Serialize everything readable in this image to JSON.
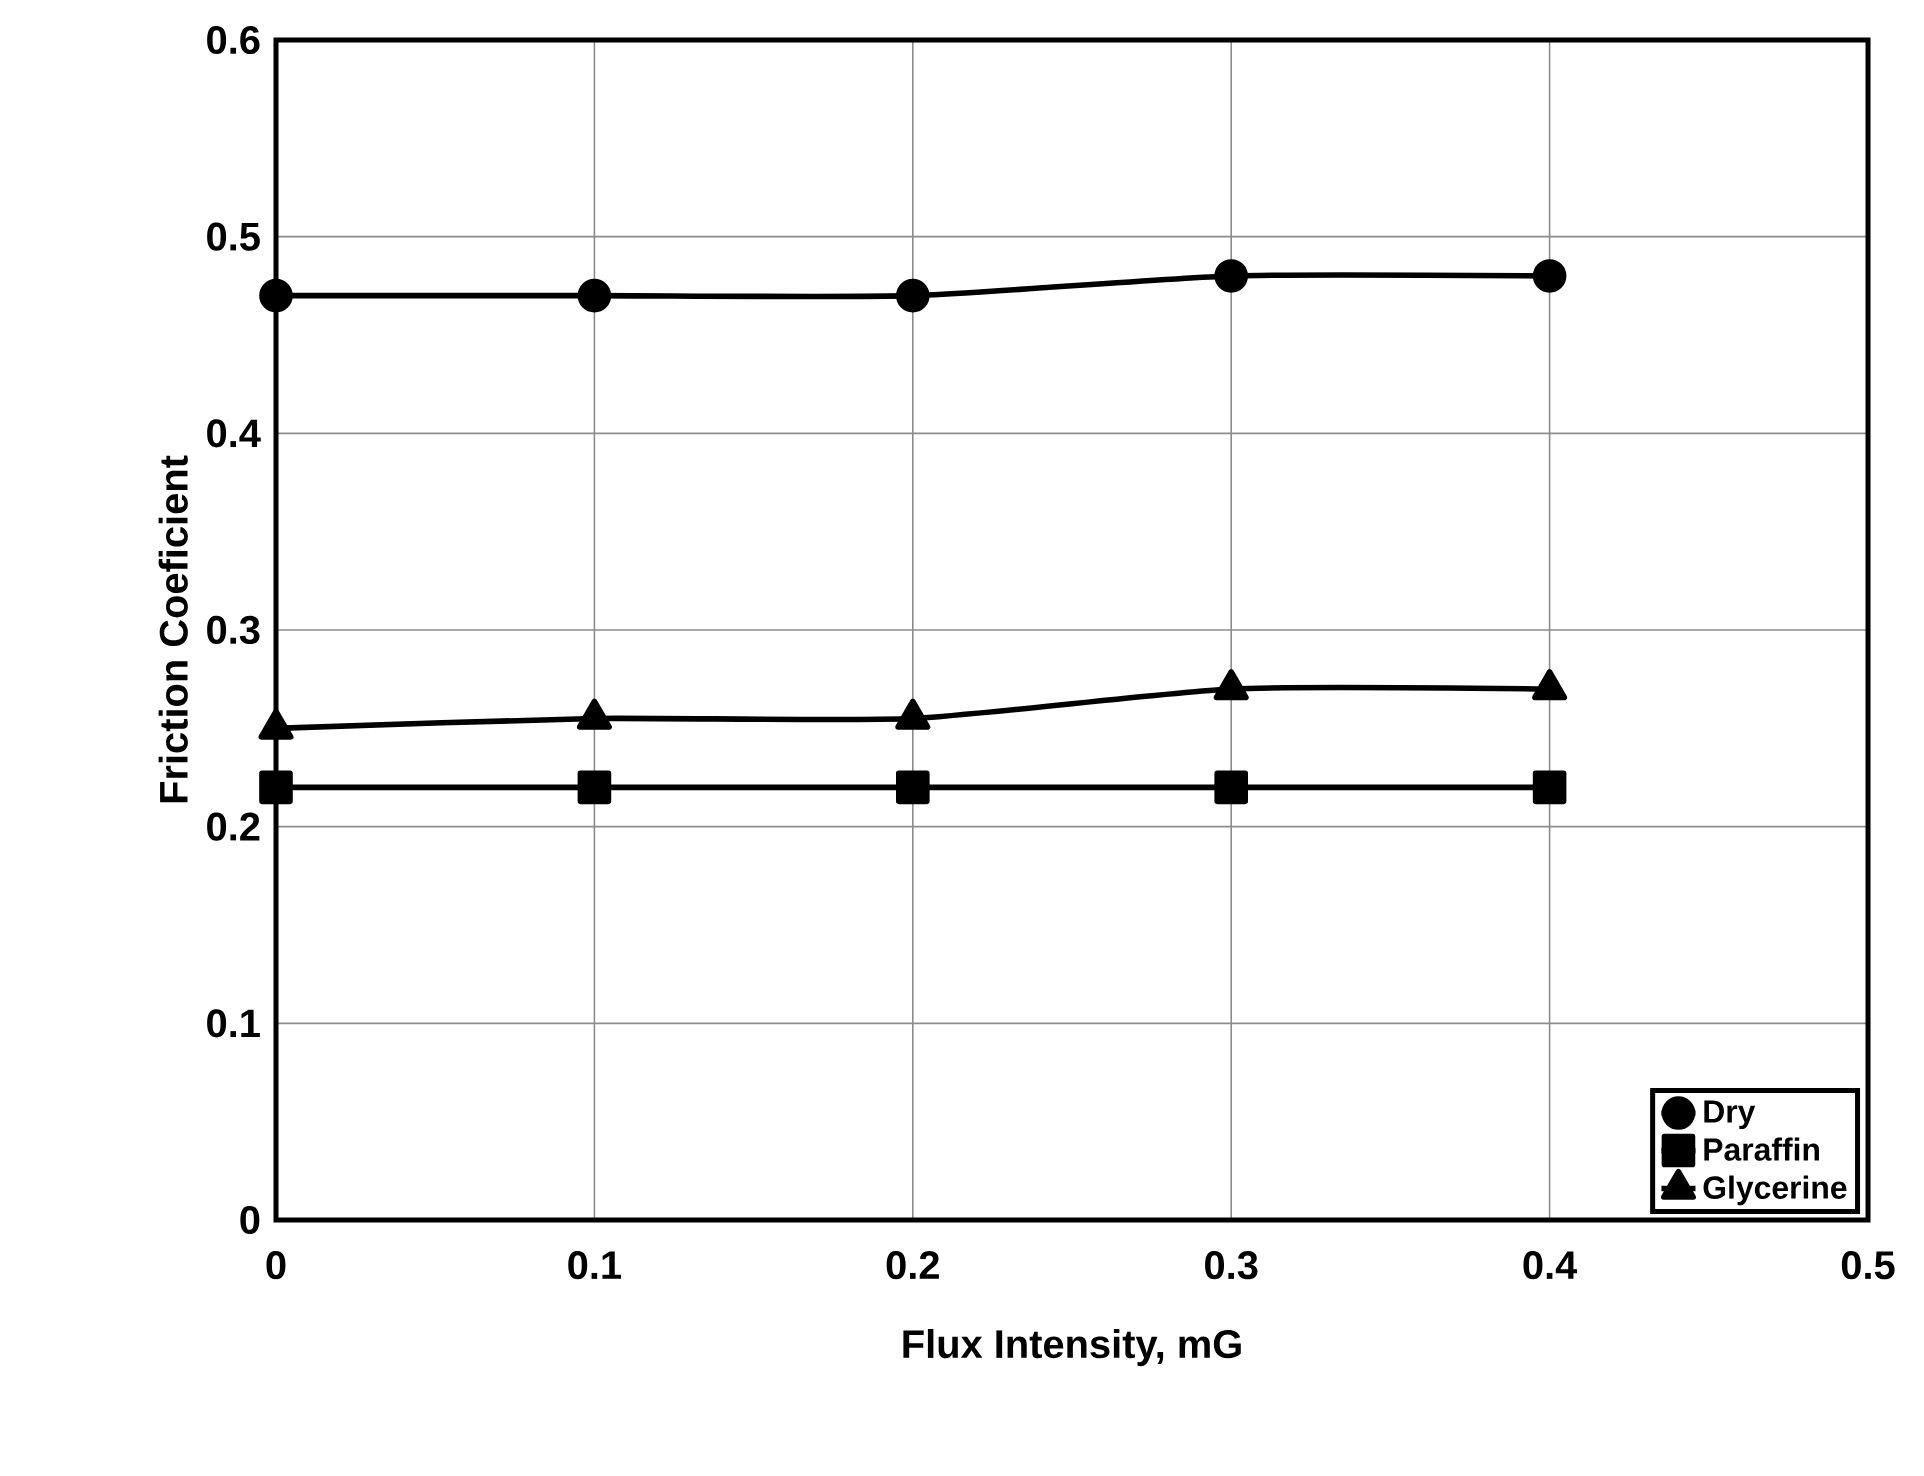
{
  "chart_data": {
    "type": "line",
    "xlabel": "Flux Intensity, mG",
    "ylabel": "Friction Coeficient",
    "x": [
      0,
      0.1,
      0.2,
      0.3,
      0.4
    ],
    "series": [
      {
        "name": "Dry",
        "color": "#000000",
        "marker": "circle",
        "values": [
          0.47,
          0.47,
          0.47,
          0.48,
          0.48
        ]
      },
      {
        "name": "Paraffin",
        "color": "#000000",
        "marker": "square",
        "values": [
          0.22,
          0.22,
          0.22,
          0.22,
          0.22
        ]
      },
      {
        "name": "Glycerine",
        "color": "#000000",
        "marker": "triangle",
        "values": [
          0.25,
          0.255,
          0.255,
          0.27,
          0.27
        ]
      }
    ],
    "xlim": [
      0,
      0.5
    ],
    "xticks": [
      0,
      0.1,
      0.2,
      0.3,
      0.4,
      0.5
    ],
    "ylim": [
      0,
      0.6
    ],
    "yticks": [
      0,
      0.1,
      0.2,
      0.3,
      0.4,
      0.5,
      0.6
    ],
    "grid": true,
    "legend": "bottom right",
    "line_style": "solid"
  }
}
